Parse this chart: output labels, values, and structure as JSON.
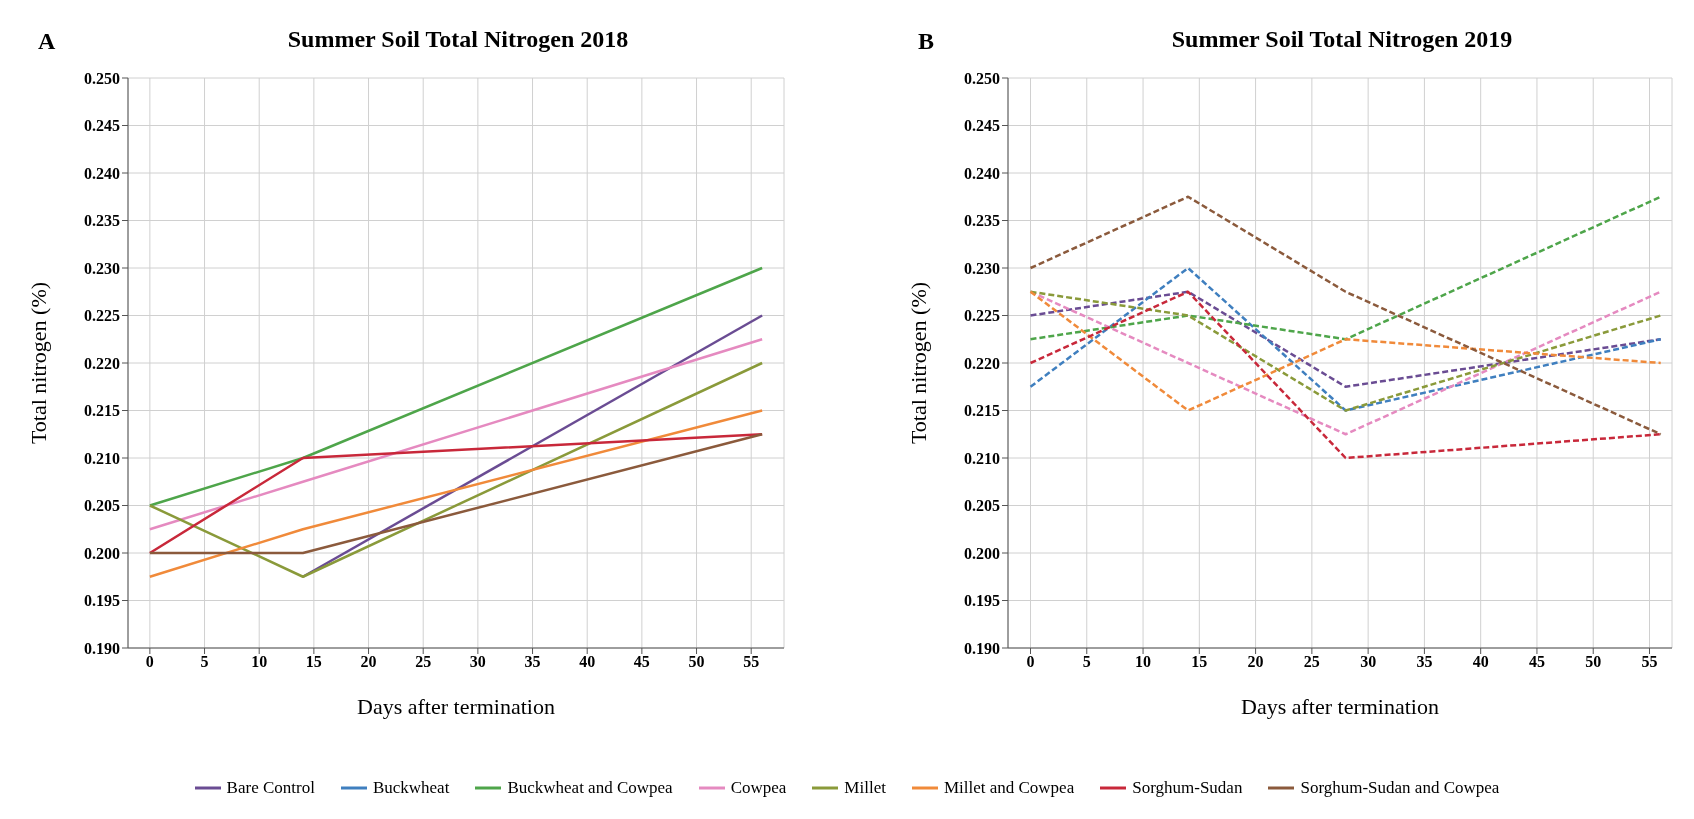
{
  "chart_data": [
    {
      "type": "line",
      "title": "Summer Soil Total Nitrogen  2018",
      "annotations": [
        "A"
      ],
      "xlabel": "Days after termination",
      "ylabel": "Total nitrogen (%)",
      "x": [
        0,
        14,
        56
      ],
      "xlim": [
        -2,
        58
      ],
      "xticks": [
        0,
        5,
        10,
        15,
        20,
        25,
        30,
        35,
        40,
        45,
        50,
        55
      ],
      "ylim": [
        0.19,
        0.25
      ],
      "yticks": [
        {
          "value": 0.19,
          "label": "0.190"
        },
        0.195,
        {
          "value": 0.2,
          "label": "0.200"
        },
        0.205,
        {
          "value": 0.21,
          "label": "0.210"
        },
        0.215,
        {
          "value": 0.22,
          "label": "0.220"
        },
        0.225,
        {
          "value": 0.23,
          "label": "0.230"
        },
        0.235,
        {
          "value": 0.24,
          "label": "0.240"
        },
        0.245,
        {
          "value": 0.25,
          "label": "0.250"
        }
      ],
      "grid": true,
      "legend": "bottom",
      "line_style": "solid",
      "series": [
        {
          "name": "Bare Control",
          "color": "#6a4c93",
          "values": [
            null,
            0.1975,
            0.225
          ]
        },
        {
          "name": "Buckwheat and Cowpea",
          "color": "#4ea54a",
          "values": [
            0.205,
            0.21,
            0.23
          ]
        },
        {
          "name": "Cowpea",
          "color": "#e58ac0",
          "values": [
            0.2025,
            0.2075,
            0.2225
          ]
        },
        {
          "name": "Millet",
          "color": "#8a9a3a",
          "values": [
            0.205,
            0.1975,
            0.22
          ]
        },
        {
          "name": "Millet and Cowpea",
          "color": "#f08a3a",
          "values": [
            0.1975,
            0.2025,
            0.215
          ]
        },
        {
          "name": "Sorghum-Sudan",
          "color": "#c8283a",
          "values": [
            0.2,
            0.21,
            0.2125
          ]
        },
        {
          "name": "Sorghum-Sudan and Cowpea",
          "color": "#8b5a3c",
          "values": [
            0.2,
            0.2,
            0.2125
          ]
        }
      ]
    },
    {
      "type": "line",
      "title": "Summer Soil Total Nitrogen 2019",
      "annotations": [
        "B"
      ],
      "xlabel": "Days after termination",
      "ylabel": "Total nitrogen (%)",
      "x": [
        0,
        14,
        28,
        56
      ],
      "xlim": [
        -2,
        57
      ],
      "xticks": [
        0,
        5,
        10,
        15,
        20,
        25,
        30,
        35,
        40,
        45,
        50,
        55
      ],
      "ylim": [
        0.19,
        0.25
      ],
      "yticks": [
        {
          "value": 0.19,
          "label": "0.190"
        },
        0.195,
        {
          "value": 0.2,
          "label": "0.200"
        },
        0.205,
        {
          "value": 0.21,
          "label": "0.210"
        },
        0.215,
        {
          "value": 0.22,
          "label": "0.220"
        },
        0.225,
        {
          "value": 0.23,
          "label": "0.230"
        },
        0.235,
        {
          "value": 0.24,
          "label": "0.240"
        },
        0.245,
        {
          "value": 0.25,
          "label": "0.250"
        }
      ],
      "grid": true,
      "legend": "bottom",
      "line_style": "dashed",
      "series": [
        {
          "name": "Bare Control",
          "color": "#6a4c93",
          "values": [
            0.225,
            0.2275,
            0.2175,
            0.2225
          ]
        },
        {
          "name": "Buckwheat",
          "color": "#3f7fbf",
          "values": [
            0.2175,
            0.23,
            0.215,
            0.2225
          ]
        },
        {
          "name": "Buckwheat and Cowpea",
          "color": "#4ea54a",
          "values": [
            0.2225,
            0.225,
            0.2225,
            0.2375
          ]
        },
        {
          "name": "Cowpea",
          "color": "#e58ac0",
          "values": [
            0.2275,
            0.22,
            0.2125,
            0.2275
          ]
        },
        {
          "name": "Millet",
          "color": "#8a9a3a",
          "values": [
            0.2275,
            0.225,
            0.215,
            0.225
          ]
        },
        {
          "name": "Millet and Cowpea",
          "color": "#f08a3a",
          "values": [
            0.2275,
            0.215,
            0.2225,
            0.22
          ]
        },
        {
          "name": "Sorghum-Sudan",
          "color": "#c8283a",
          "values": [
            0.22,
            0.2275,
            0.21,
            0.2125
          ]
        },
        {
          "name": "Sorghum-Sudan and Cowpea",
          "color": "#8b5a3c",
          "values": [
            0.23,
            0.2375,
            0.2275,
            0.2125
          ]
        }
      ]
    }
  ]
}
